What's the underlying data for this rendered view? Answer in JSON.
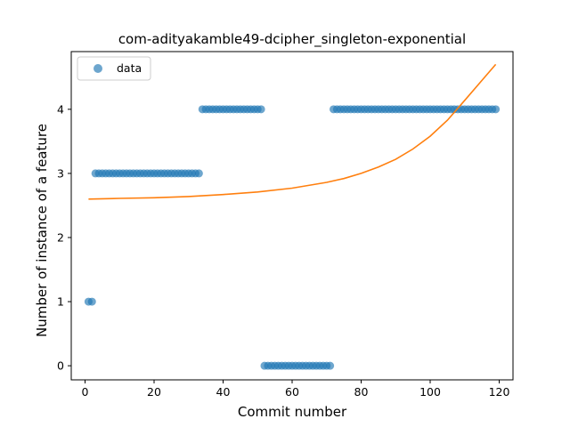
{
  "chart_data": {
    "type": "scatter",
    "title": "com-adityakamble49-dcipher_singleton-exponential",
    "xlabel": "Commit number",
    "ylabel": "Number of instance of a feature",
    "xlim": [
      -4,
      124
    ],
    "ylim": [
      -0.22,
      4.9
    ],
    "xticks": [
      0,
      20,
      40,
      60,
      80,
      100,
      120
    ],
    "yticks": [
      0,
      1,
      2,
      3,
      4
    ],
    "grid": false,
    "legend_position": "top-left",
    "colors": {
      "data": "#1f77b4",
      "fit": "#ff7f0e"
    },
    "series": [
      {
        "name": "data",
        "kind": "scatter",
        "x": [
          1,
          2,
          3,
          4,
          5,
          6,
          7,
          8,
          9,
          10,
          11,
          12,
          13,
          14,
          15,
          16,
          17,
          18,
          19,
          20,
          21,
          22,
          23,
          24,
          25,
          26,
          27,
          28,
          29,
          30,
          31,
          32,
          33,
          34,
          35,
          36,
          37,
          38,
          39,
          40,
          41,
          42,
          43,
          44,
          45,
          46,
          47,
          48,
          49,
          50,
          51,
          52,
          53,
          54,
          55,
          56,
          57,
          58,
          59,
          60,
          61,
          62,
          63,
          64,
          65,
          66,
          67,
          68,
          69,
          70,
          71,
          72,
          73,
          74,
          75,
          76,
          77,
          78,
          79,
          80,
          81,
          82,
          83,
          84,
          85,
          86,
          87,
          88,
          89,
          90,
          91,
          92,
          93,
          94,
          95,
          96,
          97,
          98,
          99,
          100,
          101,
          102,
          103,
          104,
          105,
          106,
          107,
          108,
          109,
          110,
          111,
          112,
          113,
          114,
          115,
          116,
          117,
          118,
          119
        ],
        "y": [
          1,
          1,
          3,
          3,
          3,
          3,
          3,
          3,
          3,
          3,
          3,
          3,
          3,
          3,
          3,
          3,
          3,
          3,
          3,
          3,
          3,
          3,
          3,
          3,
          3,
          3,
          3,
          3,
          3,
          3,
          3,
          3,
          3,
          4,
          4,
          4,
          4,
          4,
          4,
          4,
          4,
          4,
          4,
          4,
          4,
          4,
          4,
          4,
          4,
          4,
          4,
          0,
          0,
          0,
          0,
          0,
          0,
          0,
          0,
          0,
          0,
          0,
          0,
          0,
          0,
          0,
          0,
          0,
          0,
          0,
          0,
          4,
          4,
          4,
          4,
          4,
          4,
          4,
          4,
          4,
          4,
          4,
          4,
          4,
          4,
          4,
          4,
          4,
          4,
          4,
          4,
          4,
          4,
          4,
          4,
          4,
          4,
          4,
          4,
          4,
          4,
          4,
          4,
          4,
          4,
          4,
          4,
          4,
          4,
          4,
          4,
          4,
          4,
          4,
          4,
          4,
          4,
          4,
          4
        ]
      },
      {
        "kind": "line",
        "x": [
          1,
          10,
          20,
          30,
          40,
          50,
          60,
          70,
          75,
          80,
          85,
          90,
          95,
          100,
          105,
          110,
          115,
          119
        ],
        "y": [
          2.6,
          2.61,
          2.62,
          2.64,
          2.67,
          2.71,
          2.77,
          2.86,
          2.92,
          3.0,
          3.1,
          3.22,
          3.38,
          3.58,
          3.83,
          4.14,
          4.45,
          4.7
        ]
      }
    ]
  }
}
